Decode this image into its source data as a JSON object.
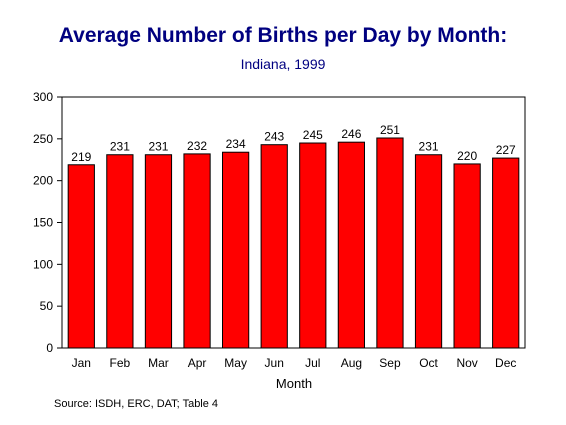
{
  "chart_data": {
    "type": "bar",
    "title": "Average Number of Births per Day by Month:",
    "subtitle": "Indiana, 1999",
    "xlabel": "Month",
    "ylabel": "",
    "categories": [
      "Jan",
      "Feb",
      "Mar",
      "Apr",
      "May",
      "Jun",
      "Jul",
      "Aug",
      "Sep",
      "Oct",
      "Nov",
      "Dec"
    ],
    "values": [
      219,
      231,
      231,
      232,
      234,
      243,
      245,
      246,
      251,
      231,
      220,
      227
    ],
    "ylim": [
      0,
      300
    ],
    "yticks": [
      0,
      50,
      100,
      150,
      200,
      250,
      300
    ],
    "bar_color": "#ff0000",
    "plot_background": "#ffffff",
    "grid": false,
    "legend": "none",
    "data_labels": true
  },
  "source": "Source:  ISDH, ERC, DAT; Table 4"
}
